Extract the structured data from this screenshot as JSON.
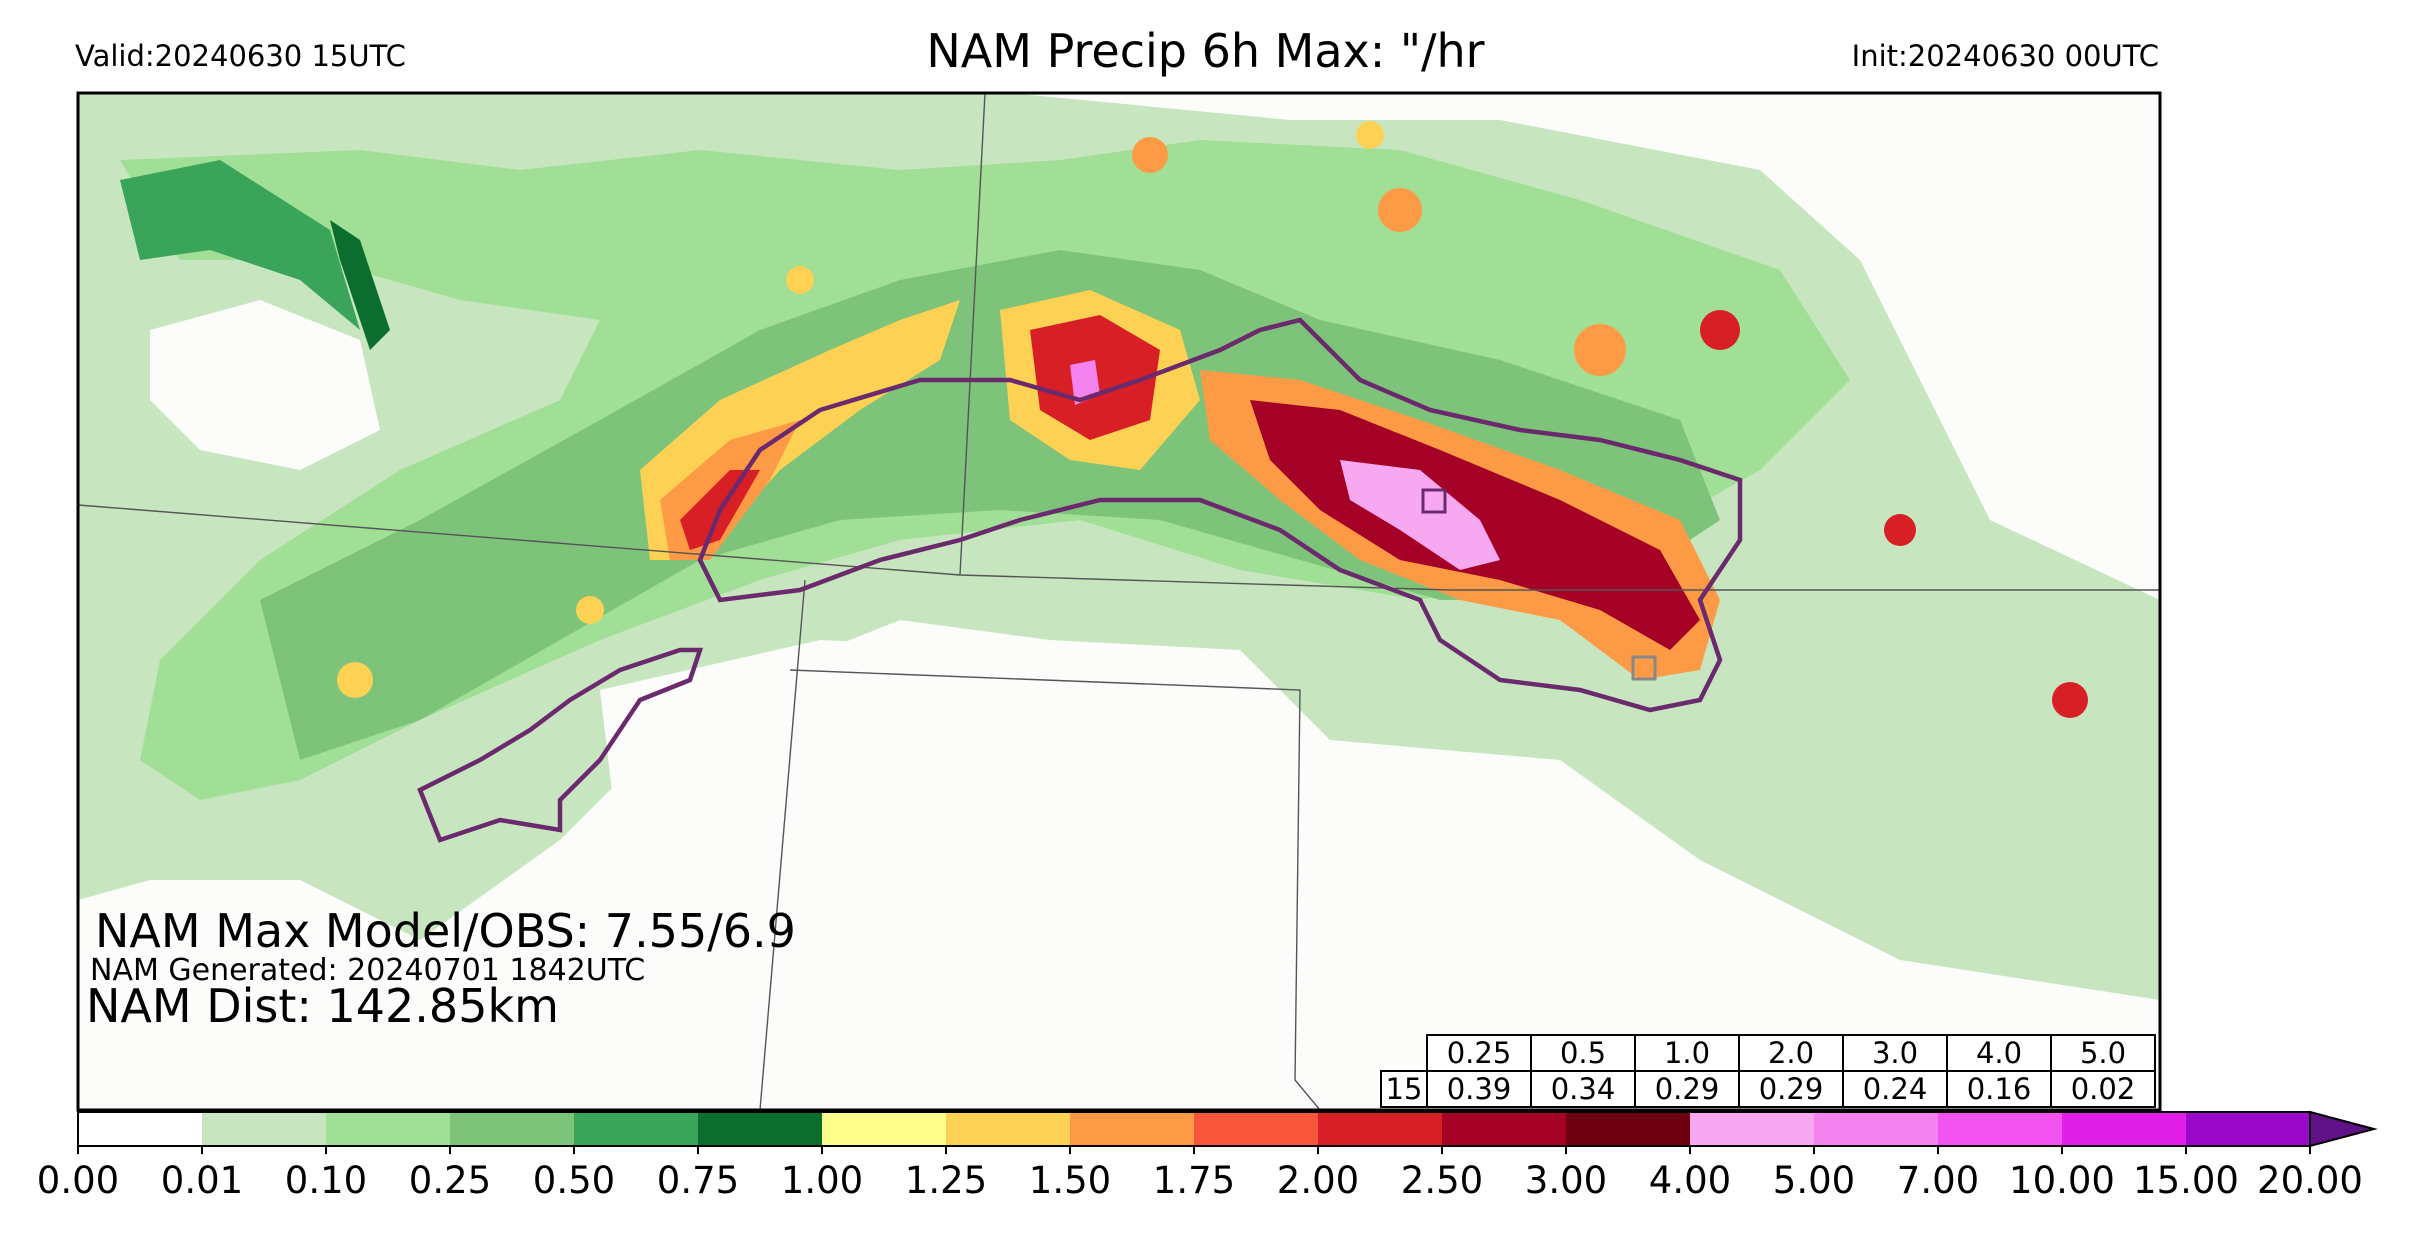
{
  "header": {
    "valid": "Valid:20240630 15UTC",
    "title": "NAM Precip 6h Max: \"/hr",
    "init": "Init:20240630 00UTC"
  },
  "annotations": {
    "max_model_obs": "NAM Max Model/OBS: 7.55/6.9",
    "generated": "NAM Generated: 20240701 1842UTC",
    "dist": "NAM Dist: 142.85km"
  },
  "stats_table": {
    "thresholds": [
      "0.25",
      "0.5",
      "1.0",
      "2.0",
      "3.0",
      "4.0",
      "5.0"
    ],
    "row_label": "15",
    "values": [
      "0.39",
      "0.34",
      "0.29",
      "0.29",
      "0.24",
      "0.16",
      "0.02"
    ]
  },
  "colorbar": {
    "ticks": [
      "0.00",
      "0.01",
      "0.10",
      "0.25",
      "0.50",
      "0.75",
      "1.00",
      "1.25",
      "1.50",
      "1.75",
      "2.00",
      "2.50",
      "3.00",
      "4.00",
      "5.00",
      "7.00",
      "10.00",
      "15.00",
      "20.00"
    ],
    "colors": [
      "#ffffff",
      "#c7e6c0",
      "#a2df96",
      "#7dc47a",
      "#3aa55a",
      "#0b6e2e",
      "#fdfd8a",
      "#fdd154",
      "#fd9a45",
      "#f7563a",
      "#d81f26",
      "#a50026",
      "#6d0010",
      "#f7a8f0",
      "#f583ef",
      "#f252ee",
      "#e01fe8",
      "#9a09c9"
    ],
    "extend_color": "#5f1185"
  },
  "colors": {
    "background": "#fcfcfb",
    "boundary": "#6b2a6e",
    "state_lines": "#555555"
  }
}
